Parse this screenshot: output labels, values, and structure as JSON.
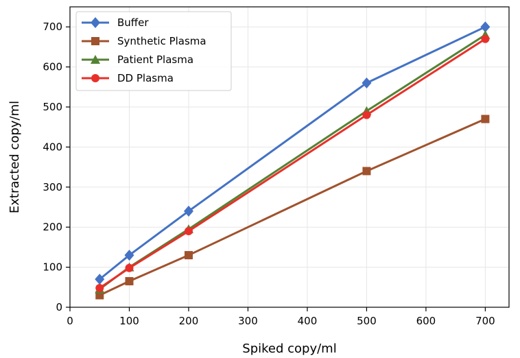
{
  "chart_data": {
    "type": "line",
    "xlabel": "Spiked copy/ml",
    "ylabel": "Extracted copy/ml",
    "xlim": [
      0,
      740
    ],
    "ylim": [
      0,
      750
    ],
    "xticks": [
      0,
      100,
      200,
      300,
      400,
      500,
      600,
      700
    ],
    "yticks": [
      0,
      100,
      200,
      300,
      400,
      500,
      600,
      700
    ],
    "grid": true,
    "legend_position": "top-left",
    "x": [
      50,
      100,
      200,
      500,
      700
    ],
    "series": [
      {
        "name": "Buffer",
        "values": [
          70,
          130,
          240,
          560,
          700
        ],
        "color": "#4472c4",
        "marker": "diamond"
      },
      {
        "name": "Synthetic Plasma",
        "values": [
          30,
          65,
          130,
          340,
          470
        ],
        "color": "#a0522d",
        "marker": "square"
      },
      {
        "name": "Patient Plasma",
        "values": [
          45,
          100,
          195,
          490,
          680
        ],
        "color": "#548235",
        "marker": "triangle"
      },
      {
        "name": "DD Plasma",
        "values": [
          48,
          98,
          190,
          480,
          670
        ],
        "color": "#e8302a",
        "marker": "circle"
      }
    ]
  }
}
